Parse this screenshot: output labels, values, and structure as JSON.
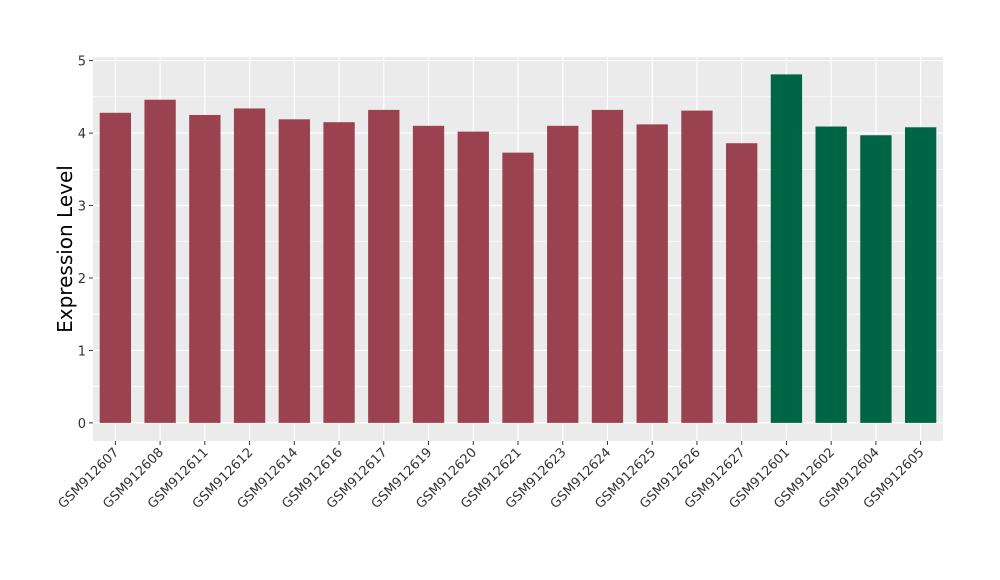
{
  "chart_data": {
    "type": "bar",
    "title": "",
    "xlabel": "",
    "ylabel": "Expression Level",
    "ylim": [
      0,
      5
    ],
    "yticks": [
      0,
      1,
      2,
      3,
      4,
      5
    ],
    "grid": true,
    "panel_background": "#ebebeb",
    "legend": "none",
    "categories": [
      "GSM912607",
      "GSM912608",
      "GSM912611",
      "GSM912612",
      "GSM912614",
      "GSM912616",
      "GSM912617",
      "GSM912619",
      "GSM912620",
      "GSM912621",
      "GSM912623",
      "GSM912624",
      "GSM912625",
      "GSM912626",
      "GSM912627",
      "GSM912601",
      "GSM912602",
      "GSM912604",
      "GSM912605"
    ],
    "values": [
      4.28,
      4.46,
      4.25,
      4.34,
      4.19,
      4.15,
      4.32,
      4.1,
      4.02,
      3.73,
      4.1,
      4.32,
      4.12,
      4.31,
      3.86,
      4.81,
      4.09,
      3.97,
      4.08
    ],
    "group_colors": [
      "#9b4251",
      "#9b4251",
      "#9b4251",
      "#9b4251",
      "#9b4251",
      "#9b4251",
      "#9b4251",
      "#9b4251",
      "#9b4251",
      "#9b4251",
      "#9b4251",
      "#9b4251",
      "#9b4251",
      "#9b4251",
      "#9b4251",
      "#006544",
      "#006544",
      "#006544",
      "#006544"
    ]
  }
}
